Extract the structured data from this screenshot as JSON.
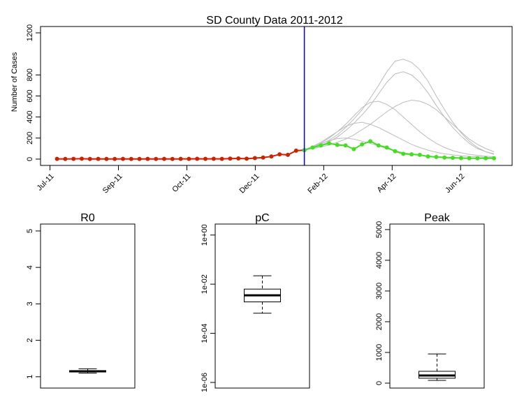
{
  "chart_data": [
    {
      "type": "line",
      "title": "SD County Data 2011-2012",
      "ylabel": "Number of Cases",
      "xlim": [
        -2,
        55.2
      ],
      "ylim": [
        -60,
        1260
      ],
      "xticks": [
        {
          "value": -0.85,
          "label": "Jul-11"
        },
        {
          "value": 7.45,
          "label": "Sep-11"
        },
        {
          "value": 15.75,
          "label": "Oct-11"
        },
        {
          "value": 24.05,
          "label": "Dec-11"
        },
        {
          "value": 32.35,
          "label": "Feb-12"
        },
        {
          "value": 40.65,
          "label": "Apr-12"
        },
        {
          "value": 48.95,
          "label": "Jun-12"
        }
      ],
      "yticks": [
        0,
        200,
        400,
        600,
        800,
        1200
      ],
      "vline": 30,
      "vline_color": "#0000ee",
      "series": [
        {
          "color": "#bbbbbb",
          "points": false,
          "x": [
            30,
            31,
            32,
            33,
            34,
            35,
            36,
            37,
            38,
            39,
            40,
            41,
            42,
            43,
            44,
            45,
            46,
            47,
            48,
            49,
            50,
            51,
            52,
            53
          ],
          "values": [
            90,
            110,
            140,
            180,
            230,
            300,
            380,
            470,
            580,
            700,
            830,
            930,
            950,
            920,
            850,
            740,
            600,
            470,
            350,
            250,
            170,
            110,
            70,
            45
          ]
        },
        {
          "color": "#bbbbbb",
          "points": false,
          "x": [
            30,
            31,
            32,
            33,
            34,
            35,
            36,
            37,
            38,
            39,
            40,
            41,
            42,
            43,
            44,
            45,
            46,
            47,
            48,
            49,
            50,
            51,
            52,
            53
          ],
          "values": [
            90,
            105,
            130,
            165,
            210,
            270,
            340,
            420,
            510,
            620,
            730,
            810,
            830,
            800,
            730,
            630,
            510,
            400,
            300,
            220,
            150,
            100,
            70,
            50
          ]
        },
        {
          "color": "#bbbbbb",
          "points": false,
          "x": [
            30,
            31,
            32,
            33,
            34,
            35,
            36,
            37,
            38,
            39,
            40,
            41,
            42,
            43,
            44,
            45,
            46,
            47,
            48,
            49,
            50,
            51,
            52,
            53
          ],
          "values": [
            90,
            100,
            115,
            135,
            160,
            190,
            230,
            280,
            330,
            390,
            450,
            500,
            540,
            560,
            550,
            520,
            470,
            400,
            330,
            260,
            190,
            140,
            100,
            70
          ]
        },
        {
          "color": "#bbbbbb",
          "points": false,
          "x": [
            30,
            31,
            32,
            33,
            34,
            35,
            36,
            37,
            38,
            39,
            40,
            41,
            42,
            43,
            44,
            45,
            46,
            47,
            48,
            49,
            50,
            51,
            52,
            53
          ],
          "values": [
            90,
            115,
            150,
            200,
            260,
            330,
            410,
            490,
            540,
            550,
            520,
            470,
            400,
            330,
            260,
            200,
            150,
            110,
            80,
            60,
            45,
            35,
            28,
            22
          ]
        },
        {
          "color": "#bbbbbb",
          "points": false,
          "x": [
            30,
            31,
            32,
            33,
            34,
            35,
            36,
            37,
            38,
            39,
            40,
            41,
            42,
            43,
            44,
            45,
            46,
            47,
            48,
            49,
            50,
            51,
            52,
            53
          ],
          "values": [
            90,
            120,
            160,
            210,
            260,
            310,
            340,
            350,
            330,
            300,
            260,
            220,
            180,
            140,
            110,
            85,
            65,
            50,
            40,
            32,
            26,
            22,
            18,
            15
          ]
        },
        {
          "color": "#bbbbbb",
          "points": false,
          "x": [
            30,
            31,
            32,
            33,
            34,
            35,
            36,
            37,
            38,
            39,
            40,
            41,
            42,
            43,
            44,
            45,
            46,
            47,
            48,
            49,
            50,
            51,
            52,
            53
          ],
          "values": [
            90,
            115,
            145,
            175,
            195,
            200,
            190,
            170,
            150,
            125,
            100,
            80,
            62,
            48,
            38,
            30,
            24,
            20,
            16,
            13,
            11,
            9,
            8,
            7
          ]
        },
        {
          "color": "#cc2200",
          "points": true,
          "x": [
            0,
            1,
            2,
            3,
            4,
            5,
            6,
            7,
            8,
            9,
            10,
            11,
            12,
            13,
            14,
            15,
            16,
            17,
            18,
            19,
            20,
            21,
            22,
            23,
            24,
            25,
            26,
            27,
            28,
            29,
            30
          ],
          "values": [
            2,
            1,
            2,
            4,
            1,
            2,
            1,
            1,
            2,
            1,
            1,
            2,
            1,
            2,
            1,
            2,
            2,
            3,
            2,
            3,
            2,
            5,
            6,
            4,
            10,
            15,
            25,
            45,
            40,
            80,
            85
          ]
        },
        {
          "color": "#44dd22",
          "points": true,
          "x": [
            30,
            31,
            32,
            33,
            34,
            35,
            36,
            37,
            38,
            39,
            40,
            41,
            42,
            43,
            44,
            45,
            46,
            47,
            48,
            49,
            50,
            51,
            52,
            53
          ],
          "values": [
            85,
            110,
            130,
            150,
            135,
            130,
            95,
            140,
            170,
            130,
            110,
            75,
            50,
            45,
            40,
            25,
            20,
            15,
            12,
            10,
            8,
            8,
            8,
            8
          ]
        }
      ]
    },
    {
      "type": "box",
      "title": "R0",
      "log_scale": false,
      "ylim": [
        0.69,
        5.19
      ],
      "yticks": [
        1,
        2,
        3,
        4,
        5
      ],
      "whisker_low": 1.1,
      "q1": 1.13,
      "median": 1.15,
      "q3": 1.17,
      "whisker_high": 1.22
    },
    {
      "type": "box",
      "title": "pC",
      "log_scale": true,
      "ylim": [
        5.9e-07,
        2.8
      ],
      "yticks": [
        {
          "value": 1,
          "label": "1e+00"
        },
        {
          "value": 0.01,
          "label": "1e-02"
        },
        {
          "value": 0.0001,
          "label": "1e-04"
        },
        {
          "value": 1e-06,
          "label": "1e-06"
        }
      ],
      "whisker_low": 0.00066,
      "q1": 0.0019,
      "median": 0.0035,
      "q3": 0.0063,
      "whisker_high": 0.022
    },
    {
      "type": "box",
      "title": "Peak",
      "log_scale": false,
      "ylim": [
        -160,
        5180
      ],
      "yticks": [
        0,
        1000,
        2000,
        3000,
        4000,
        5000
      ],
      "whisker_low": 90,
      "q1": 160,
      "median": 250,
      "q3": 386,
      "whisker_high": 950
    }
  ]
}
